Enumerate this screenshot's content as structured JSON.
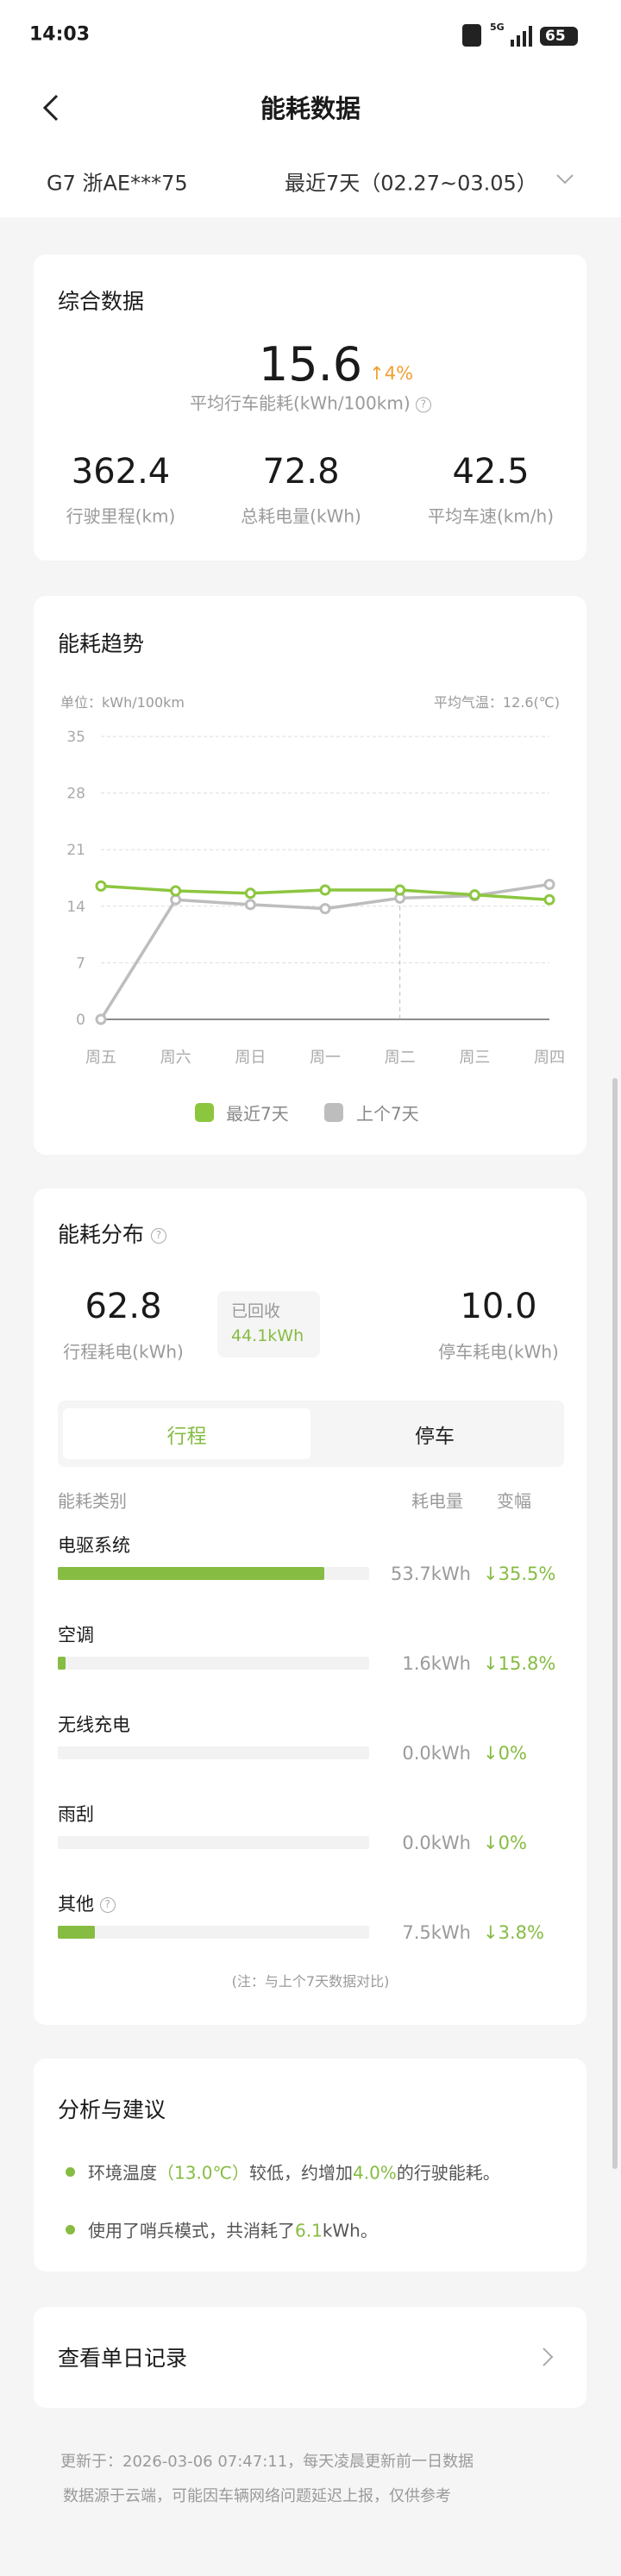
{
  "status_bar": {
    "time": "14:03",
    "network": "5G",
    "battery": "65"
  },
  "header": {
    "title": "能耗数据"
  },
  "selector": {
    "vehicle": "G7 浙AE***75",
    "period": "最近7天（02.27~03.05）"
  },
  "summary": {
    "title": "综合数据",
    "main_value": "15.6",
    "main_change": "4%",
    "main_label": "平均行车能耗(kWh/100km)",
    "stats": [
      {
        "value": "362.4",
        "label": "行驶里程(km)"
      },
      {
        "value": "72.8",
        "label": "总耗电量(kWh)"
      },
      {
        "value": "42.5",
        "label": "平均车速(km/h)"
      }
    ]
  },
  "trend": {
    "title": "能耗趋势",
    "unit": "单位：kWh/100km",
    "avg_temp": "平均气温：12.6(℃)"
  },
  "chart_data": {
    "type": "line",
    "categories": [
      "周五",
      "周六",
      "周日",
      "周一",
      "周二",
      "周三",
      "周四"
    ],
    "y_ticks": [
      "0",
      "7",
      "14",
      "21",
      "28",
      "35"
    ],
    "ylim": [
      0,
      35
    ],
    "grid": true,
    "legend_position": "bottom",
    "highlight_category": "周二",
    "series": [
      {
        "name": "最近7天",
        "color": "#8cc63f",
        "values": [
          16.5,
          15.9,
          15.6,
          16.0,
          16.0,
          15.4,
          14.8
        ]
      },
      {
        "name": "上个7天",
        "color": "#bdbdbd",
        "values": [
          0,
          14.8,
          14.2,
          13.7,
          15.0,
          15.3,
          16.7
        ]
      }
    ]
  },
  "distribution": {
    "title": "能耗分布",
    "trip_value": "62.8",
    "trip_label": "行程耗电(kWh)",
    "recovered_label": "已回收",
    "recovered_value": "44.1kWh",
    "park_value": "10.0",
    "park_label": "停车耗电(kWh)",
    "tabs": [
      {
        "label": "行程",
        "active": true
      },
      {
        "label": "停车",
        "active": false
      }
    ],
    "headers": {
      "category": "能耗类别",
      "amount": "耗电量",
      "change": "变幅"
    },
    "rows": [
      {
        "name": "电驱系统",
        "value": "53.7kWh",
        "change": "35.5%",
        "fraction": 0.855
      },
      {
        "name": "空调",
        "value": "1.6kWh",
        "change": "15.8%",
        "fraction": 0.025
      },
      {
        "name": "无线充电",
        "value": "0.0kWh",
        "change": "0%",
        "fraction": 0
      },
      {
        "name": "雨刮",
        "value": "0.0kWh",
        "change": "0%",
        "fraction": 0
      },
      {
        "name": "其他",
        "value": "7.5kWh",
        "change": "3.8%",
        "fraction": 0.12
      }
    ],
    "note": "(注：与上个7天数据对比)"
  },
  "analysis": {
    "title": "分析与建议",
    "items": [
      {
        "pre": "环境温度",
        "hl1": "（13.0℃）",
        "mid": "较低，约增加",
        "hl2": "4.0%",
        "post": "的行驶能耗。"
      },
      {
        "pre": "使用了哨兵模式，共消耗了",
        "hl1": "6.1",
        "post": "kWh。"
      }
    ]
  },
  "daily": {
    "label": "查看单日记录"
  },
  "footer": {
    "line1": "更新于：2026-03-06 07:47:11，每天凌晨更新前一日数据",
    "line2": "数据源于云端，可能因车辆网络问题延迟上报，仅供参考"
  },
  "colors": {
    "accent": "#86bc42",
    "up": "#f0a030",
    "muted": "#9a9a9a"
  }
}
